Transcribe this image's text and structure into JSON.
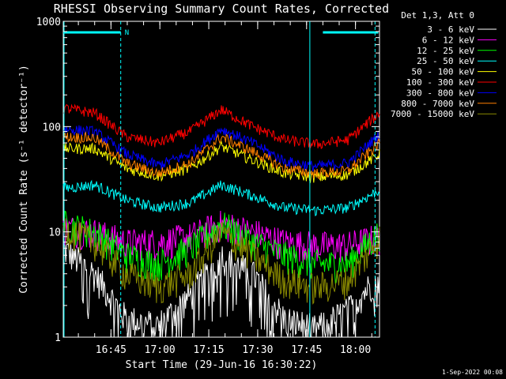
{
  "chart_data": {
    "type": "line",
    "title": "RHESSI Observing Summary Count Rates, Corrected",
    "xlabel": "Start Time (29-Jun-16 16:30:22)",
    "ylabel": "Corrected Count Rate (s⁻¹ detector⁻¹)",
    "ylog": true,
    "ylim": [
      1,
      1000
    ],
    "xlim_minutes_after_start": [
      0,
      97
    ],
    "x_ticks": [
      "16:45",
      "17:00",
      "17:15",
      "17:30",
      "17:45",
      "18:00"
    ],
    "y_ticks": [
      "1",
      "10",
      "100",
      "1000"
    ],
    "legend_header": "Det 1,3, Att 0",
    "footer_date": "1-Sep-2022 00:08",
    "flags": [
      {
        "label": "N",
        "start": "16:30",
        "end": "16:48",
        "color": "#00ffff"
      },
      {
        "label": "",
        "start": "17:50",
        "end": "18:07",
        "color": "#00ffff"
      }
    ],
    "night_markers": [
      "16:48",
      "17:46",
      "18:06"
    ],
    "series": [
      {
        "name": "3 - 6 keV",
        "color": "#ffffff",
        "base": [
          7,
          4,
          1.5,
          1.3,
          2.5,
          6,
          4,
          1.5,
          1.2,
          1.8,
          4
        ]
      },
      {
        "name": "6 - 12 keV",
        "color": "#ff00ff",
        "base": [
          11,
          10,
          8,
          8,
          9,
          12,
          10,
          8,
          7.5,
          7.5,
          9
        ]
      },
      {
        "name": "12 - 25 keV",
        "color": "#00ff00",
        "base": [
          12,
          10,
          6,
          5,
          7,
          12,
          8,
          6,
          5,
          5,
          10
        ]
      },
      {
        "name": "25 - 50 keV",
        "color": "#00ffff",
        "base": [
          26,
          28,
          20,
          17,
          19,
          28,
          22,
          17,
          16,
          17,
          25
        ]
      },
      {
        "name": "50 - 100 keV",
        "color": "#ffff00",
        "base": [
          62,
          62,
          40,
          34,
          40,
          65,
          48,
          36,
          33,
          35,
          55
        ]
      },
      {
        "name": "100 - 300 keV",
        "color": "#ff0000",
        "base": [
          150,
          135,
          80,
          70,
          90,
          145,
          100,
          75,
          68,
          75,
          135
        ]
      },
      {
        "name": "300 - 800 keV",
        "color": "#0000ff",
        "base": [
          95,
          90,
          55,
          43,
          55,
          95,
          70,
          47,
          42,
          45,
          85
        ]
      },
      {
        "name": "800 - 7000 keV",
        "color": "#ff8000",
        "base": [
          80,
          78,
          45,
          36,
          45,
          80,
          58,
          40,
          36,
          38,
          70
        ]
      },
      {
        "name": "7000 - 15000 keV",
        "color": "#8a8a00",
        "base": [
          11,
          8,
          4,
          3,
          4,
          10,
          6,
          3.5,
          3,
          3.5,
          9
        ]
      }
    ]
  }
}
